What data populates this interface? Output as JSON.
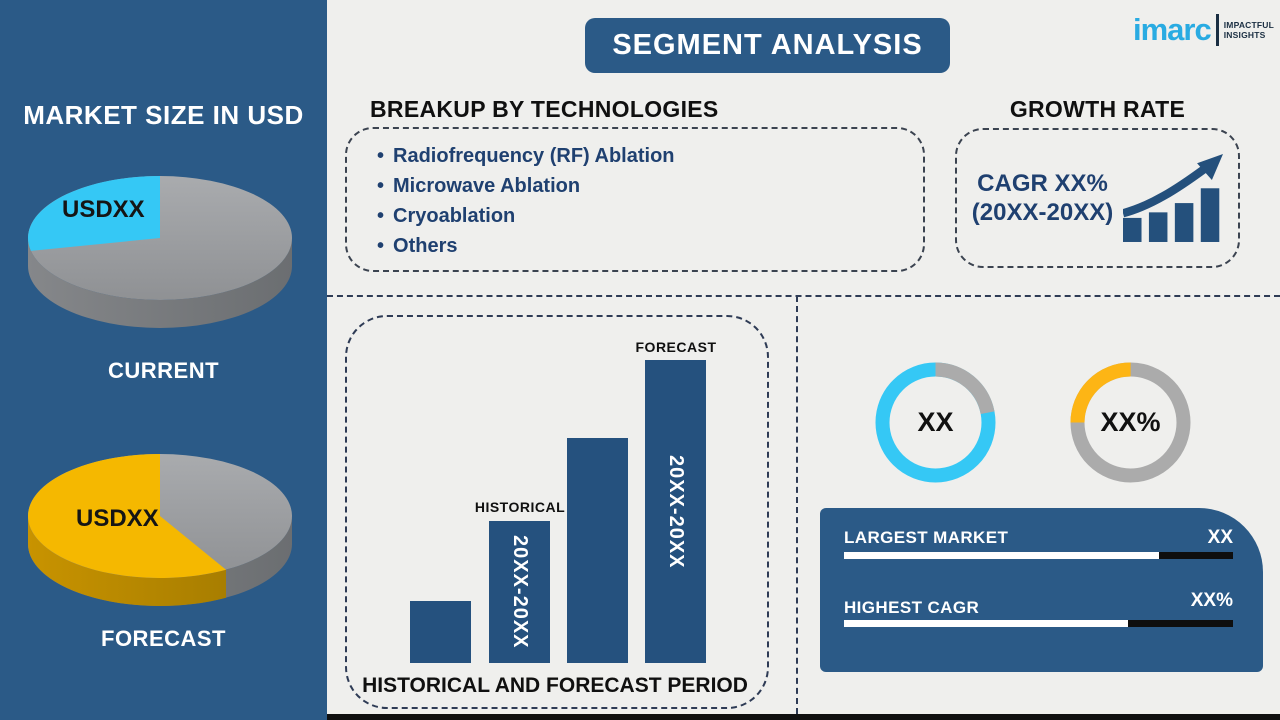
{
  "title": "SEGMENT ANALYSIS",
  "logo": {
    "name": "imarc",
    "tagline_line1": "IMPACTFUL",
    "tagline_line2": "INSIGHTS"
  },
  "sidebar": {
    "heading": "MARKET SIZE IN USD",
    "current": {
      "value_label": "USDXX",
      "caption": "CURRENT"
    },
    "forecast": {
      "value_label": "USDXX",
      "caption": "FORECAST"
    }
  },
  "breakup": {
    "heading": "BREAKUP BY TECHNOLOGIES",
    "bullet": "•",
    "items": [
      "Radiofrequency (RF) Ablation",
      "Microwave Ablation",
      "Cryoablation",
      "Others"
    ]
  },
  "growth": {
    "heading": "GROWTH RATE",
    "cagr_line1": "CAGR XX%",
    "cagr_line2": "(20XX-20XX)"
  },
  "period_chart": {
    "caption": "HISTORICAL AND FORECAST PERIOD",
    "historical_label": "HISTORICAL",
    "forecast_label": "FORECAST",
    "bar2_label": "20XX-20XX",
    "bar4_label": "20XX-20XX"
  },
  "donuts": {
    "left_value": "XX",
    "right_value": "XX%"
  },
  "stats": {
    "largest_market_label": "LARGEST MARKET",
    "largest_market_value": "XX",
    "highest_cagr_label": "HIGHEST CAGR",
    "highest_cagr_value": "XX%"
  },
  "colors": {
    "sidebar_blue": "#2B5A87",
    "bar_blue": "#25517E",
    "accent_cyan": "#35C8F5",
    "accent_yellow": "#F5B800",
    "donut_yellow": "#FDB515",
    "gray": "#A2A4A7",
    "logo_cyan": "#29ABE2",
    "background": "#EFEFED"
  },
  "chart_data": [
    {
      "type": "pie",
      "style": "3d",
      "title": "CURRENT",
      "slices": [
        {
          "label": "USDXX",
          "value": 28,
          "color": "#35C8F5"
        },
        {
          "label": "",
          "value": 72,
          "color": "#A2A4A7"
        }
      ],
      "highlight_start_angle": 90,
      "highlight_end_angle": 192
    },
    {
      "type": "pie",
      "style": "3d",
      "title": "FORECAST",
      "slices": [
        {
          "label": "USDXX",
          "value": 58,
          "color": "#F5B800"
        },
        {
          "label": "",
          "value": 42,
          "color": "#A2A4A7"
        }
      ],
      "highlight_start_angle": 90,
      "highlight_end_angle": 300
    },
    {
      "type": "bar",
      "title": "HISTORICAL AND FORECAST PERIOD",
      "categories": [
        "",
        "HISTORICAL 20XX-20XX",
        "",
        "FORECAST 20XX-20XX"
      ],
      "values": [
        62,
        142,
        225,
        303
      ],
      "unit": "relative-height-px",
      "ylim": [
        0,
        348
      ]
    },
    {
      "type": "donut",
      "center_label": "XX",
      "slices": [
        {
          "label": "highlight",
          "value": 78,
          "color": "#35C8F5"
        },
        {
          "label": "rest",
          "value": 22,
          "color": "#ABABAB"
        }
      ]
    },
    {
      "type": "donut",
      "center_label": "XX%",
      "slices": [
        {
          "label": "highlight",
          "value": 25,
          "color": "#FDB515"
        },
        {
          "label": "rest",
          "value": 75,
          "color": "#ABABAB"
        }
      ]
    },
    {
      "type": "progress",
      "label": "LARGEST MARKET",
      "value_label": "XX",
      "fill_pct": 81
    },
    {
      "type": "progress",
      "label": "HIGHEST CAGR",
      "value_label": "XX%",
      "fill_pct": 73
    }
  ]
}
